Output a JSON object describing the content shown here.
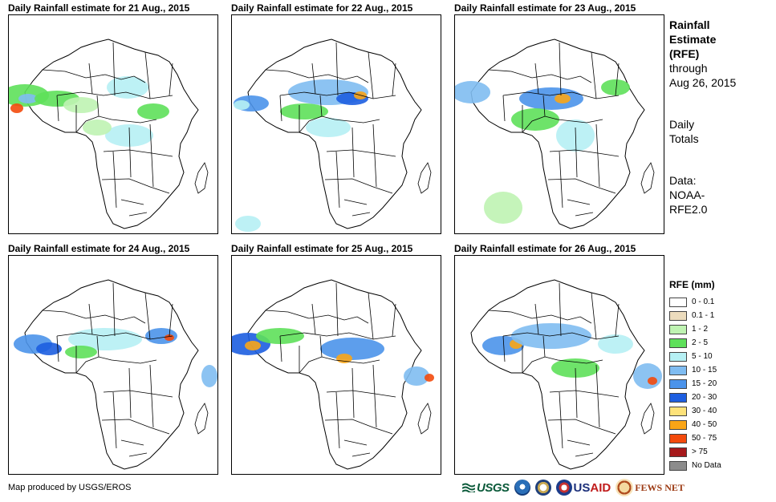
{
  "panels": [
    {
      "title": "Daily Rainfall estimate for 21 Aug., 2015"
    },
    {
      "title": "Daily Rainfall estimate for 22 Aug., 2015"
    },
    {
      "title": "Daily Rainfall estimate for 23 Aug., 2015"
    },
    {
      "title": "Daily Rainfall estimate for 24 Aug., 2015"
    },
    {
      "title": "Daily Rainfall estimate for 25 Aug., 2015"
    },
    {
      "title": "Daily Rainfall estimate for 26 Aug., 2015"
    }
  ],
  "sidebar": {
    "title_lines": [
      "Rainfall",
      "Estimate",
      "(RFE)"
    ],
    "through_lines": [
      "through",
      "Aug 26, 2015"
    ],
    "totals_lines": [
      "Daily",
      "Totals"
    ],
    "data_lines": [
      "Data:",
      "NOAA-",
      "RFE2.0"
    ]
  },
  "legend": {
    "title": "RFE (mm)",
    "items": [
      {
        "label": "0 - 0.1",
        "color": "#ffffff"
      },
      {
        "label": "0.1 - 1",
        "color": "#ecdcbd"
      },
      {
        "label": "1 - 2",
        "color": "#bff3b2"
      },
      {
        "label": "2 - 5",
        "color": "#5ee05a"
      },
      {
        "label": "5 - 10",
        "color": "#b6f0f4"
      },
      {
        "label": "10 - 15",
        "color": "#7fbcf1"
      },
      {
        "label": "15 - 20",
        "color": "#4b93ea"
      },
      {
        "label": "20 - 30",
        "color": "#1d5ee0"
      },
      {
        "label": "30 - 40",
        "color": "#fde27a"
      },
      {
        "label": "40 - 50",
        "color": "#f9a517"
      },
      {
        "label": "50 - 75",
        "color": "#f34a0c"
      },
      {
        "label": "> 75",
        "color": "#a6191b"
      },
      {
        "label": "No Data",
        "color": "#8c8c8c"
      }
    ]
  },
  "footer": {
    "credit": "Map produced by USGS/EROS"
  },
  "logos": {
    "usgs": "USGS",
    "usaid_left": "US",
    "usaid_right": "AID",
    "fews": "FEWS NET"
  }
}
